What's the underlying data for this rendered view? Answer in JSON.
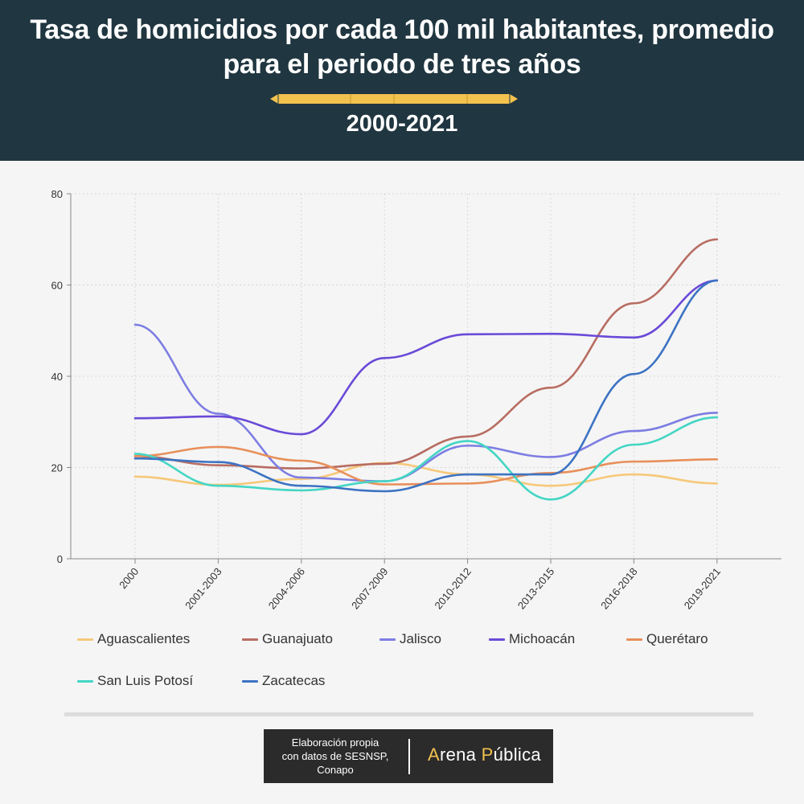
{
  "header": {
    "title": "Tasa de homicidios por cada 100 mil habitantes, promedio para el periodo de tres años",
    "subtitle": "2000-2021",
    "bg_color": "#203640",
    "accent_color": "#f2c14e"
  },
  "chart_data": {
    "type": "line",
    "categories": [
      "2000",
      "2001-2003",
      "2004-2006",
      "2007-2009",
      "2010-2012",
      "2013-2015",
      "2016-2018",
      "2019-2021"
    ],
    "ylim": [
      0,
      80
    ],
    "yticks": [
      "0",
      "20",
      "40",
      "60",
      "80"
    ],
    "grid": true,
    "legend_position": "bottom",
    "series": [
      {
        "name": "Aguascalientes",
        "color": "#f6c879",
        "values": [
          18,
          16.2,
          17.5,
          21,
          18.5,
          16,
          18.5,
          16.5
        ]
      },
      {
        "name": "Guanajuato",
        "color": "#b86d62",
        "values": [
          22.5,
          20.5,
          19.8,
          20.8,
          26.8,
          37.5,
          56,
          70
        ]
      },
      {
        "name": "Jalisco",
        "color": "#7d7de3",
        "values": [
          51.3,
          31.8,
          17.8,
          17,
          24.8,
          22.3,
          28,
          32
        ]
      },
      {
        "name": "Michoacán",
        "color": "#6a4ad8",
        "values": [
          30.8,
          31.2,
          27.3,
          44,
          49.2,
          49.3,
          48.5,
          61
        ]
      },
      {
        "name": "Querétaro",
        "color": "#e88f5a",
        "values": [
          22.5,
          24.5,
          21.5,
          16.3,
          16.5,
          18.8,
          21.3,
          21.8
        ]
      },
      {
        "name": "San Luis Potosí",
        "color": "#44d6c4",
        "values": [
          23,
          16,
          15,
          17,
          25.8,
          13,
          25,
          31
        ]
      },
      {
        "name": "Zacatecas",
        "color": "#3c73c3",
        "values": [
          22,
          21.2,
          16,
          14.8,
          18.5,
          18.5,
          40.5,
          61
        ]
      }
    ]
  },
  "credit": {
    "source_lines": [
      "Elaboración propia",
      "con datos de SESNSP,",
      "Conapo"
    ],
    "brand_part1": "Arena ",
    "brand_highlight1": "P",
    "brand_part2": "ública",
    "brand_prefix_highlight": "A",
    "brand_prefix_rest": "rena "
  }
}
